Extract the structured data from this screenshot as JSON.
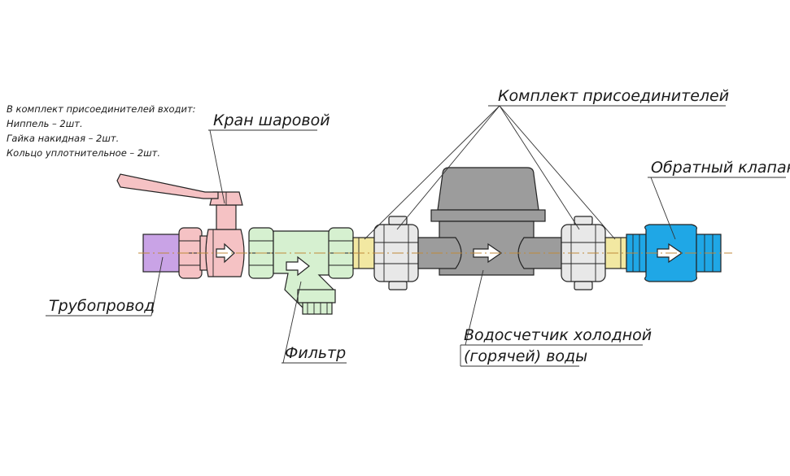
{
  "colors": {
    "pipe": "#c9a3e6",
    "valve": "#f5c2c4",
    "filter": "#d6f0d0",
    "fittings": "#e8e8e8",
    "brass": "#f2e8a2",
    "meter": "#9c9c9c",
    "check_valve": "#1fa7e6",
    "line": "#222222"
  },
  "labels": {
    "kit_title": "Комплект присоединителей",
    "valve": "Кран шаровой",
    "check_valve": "Обратный клапан",
    "pipeline": "Трубопровод",
    "filter": "Фильтр",
    "meter_line1": "Водосчетчик холодной",
    "meter_line2": "(горячей) воды"
  },
  "note": {
    "line1": "В комплект присоединителей входит:",
    "line2": "Ниппель – 2шт.",
    "line3": "Гайка накидная – 2шт.",
    "line4": "Кольцо уплотнительное – 2шт."
  },
  "icons": {
    "flow_arrow": "flow-arrow-icon"
  }
}
